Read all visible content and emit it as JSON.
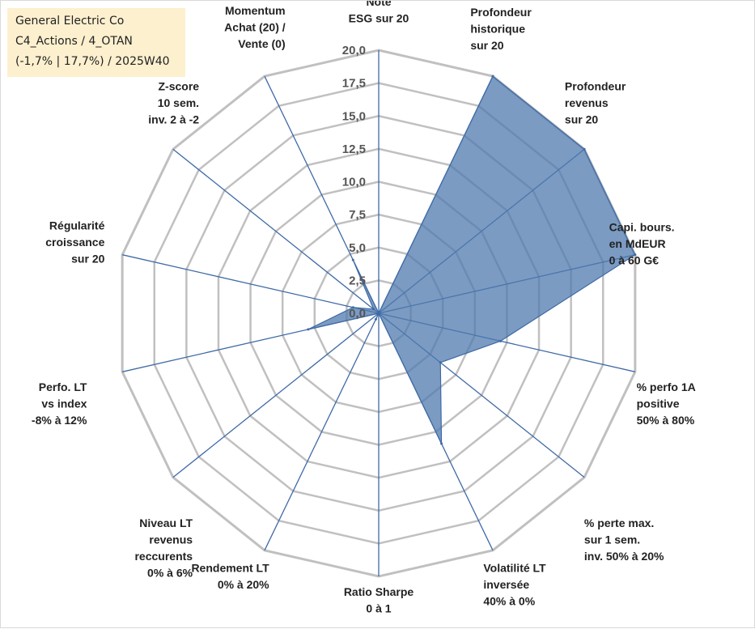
{
  "title_box": {
    "line1": "General Electric Co",
    "line2": "C4_Actions / 4_OTAN",
    "line3": "(-1,7% | 17,7%) / 2025W40"
  },
  "chart_data": {
    "type": "radar",
    "rlim": [
      0,
      20
    ],
    "r_ticks": [
      "0,0",
      "2,5",
      "5,0",
      "7,5",
      "10,0",
      "12,5",
      "15,0",
      "17,5",
      "20,0"
    ],
    "grid": true,
    "axes": [
      {
        "label": [
          "Note",
          "ESG sur 20"
        ],
        "value": 0
      },
      {
        "label": [
          "Profondeur",
          "historique",
          "sur 20"
        ],
        "value": 20
      },
      {
        "label": [
          "Profondeur",
          "revenus",
          "sur 20"
        ],
        "value": 20
      },
      {
        "label": [
          "Capi. bours.",
          "en MdEUR",
          "0 à 60 G€"
        ],
        "value": 20
      },
      {
        "label": [
          "% perfo 1A",
          "positive",
          "50% à 80%"
        ],
        "value": 9.5
      },
      {
        "label": [
          "% perte max.",
          "sur 1 sem.",
          "inv. 50% à 20%"
        ],
        "value": 6
      },
      {
        "label": [
          "Volatilité LT",
          "inversée",
          "40% à 0%"
        ],
        "value": 11
      },
      {
        "label": [
          "Ratio Sharpe",
          "0 à 1"
        ],
        "value": 0
      },
      {
        "label": [
          "Rendement LT",
          "0% à 20%"
        ],
        "value": 0.5
      },
      {
        "label": [
          "Niveau LT",
          "revenus",
          "reccurents",
          "0% à 6%"
        ],
        "value": 0
      },
      {
        "label": [
          "Perfo. LT",
          "vs index",
          "-8% à 12%"
        ],
        "value": 5.5
      },
      {
        "label": [
          "Régularité",
          "croissance",
          "sur 20"
        ],
        "value": 2
      },
      {
        "label": [
          "Z-score",
          "10 sem.",
          "inv. 2 à -2"
        ],
        "value": 0.5
      },
      {
        "label": [
          "Momentum",
          "Achat (20) /",
          "Vente (0)"
        ],
        "value": 4.5
      }
    ],
    "fill_color": "#4f79ad",
    "fill_opacity": 0.75,
    "line_color": "#3f6aa6",
    "grid_color": "#c0c0c0",
    "spoke_color": "#3f6aa6"
  }
}
